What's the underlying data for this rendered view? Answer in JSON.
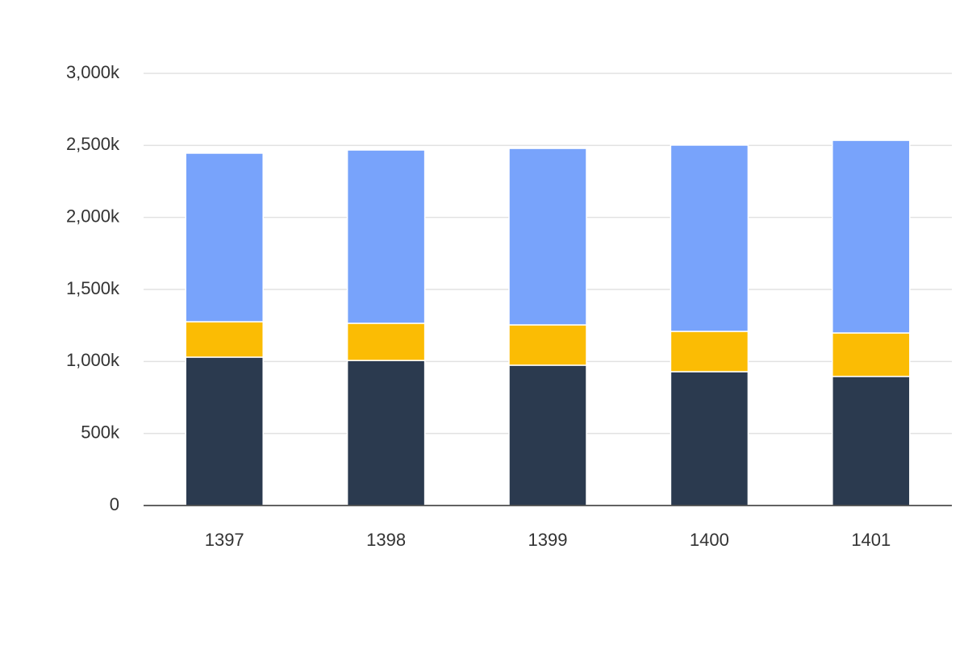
{
  "chart_data": {
    "type": "stacked_bar",
    "categories": [
      "1397",
      "1398",
      "1399",
      "1400",
      "1401"
    ],
    "series": [
      {
        "color": "#2b3a4f",
        "values": [
          1030000,
          1007000,
          974000,
          929000,
          896000
        ]
      },
      {
        "color": "#fbbc04",
        "values": [
          246000,
          258000,
          280000,
          280000,
          302000
        ]
      },
      {
        "color": "#78a3fb",
        "values": [
          1170000,
          1203000,
          1225000,
          1293000,
          1337000
        ]
      }
    ],
    "ylim": [
      0,
      3000000
    ],
    "yticks": [
      0,
      {
        "value": 500000,
        "label": "500k"
      },
      {
        "value": 1000000,
        "label": "1,000k"
      },
      {
        "value": 1500000,
        "label": "1,500k"
      },
      {
        "value": 2000000,
        "label": "2,000k"
      },
      {
        "value": 2500000,
        "label": "2,500k"
      },
      {
        "value": 3000000,
        "label": "3,000k"
      }
    ],
    "grid": true
  }
}
